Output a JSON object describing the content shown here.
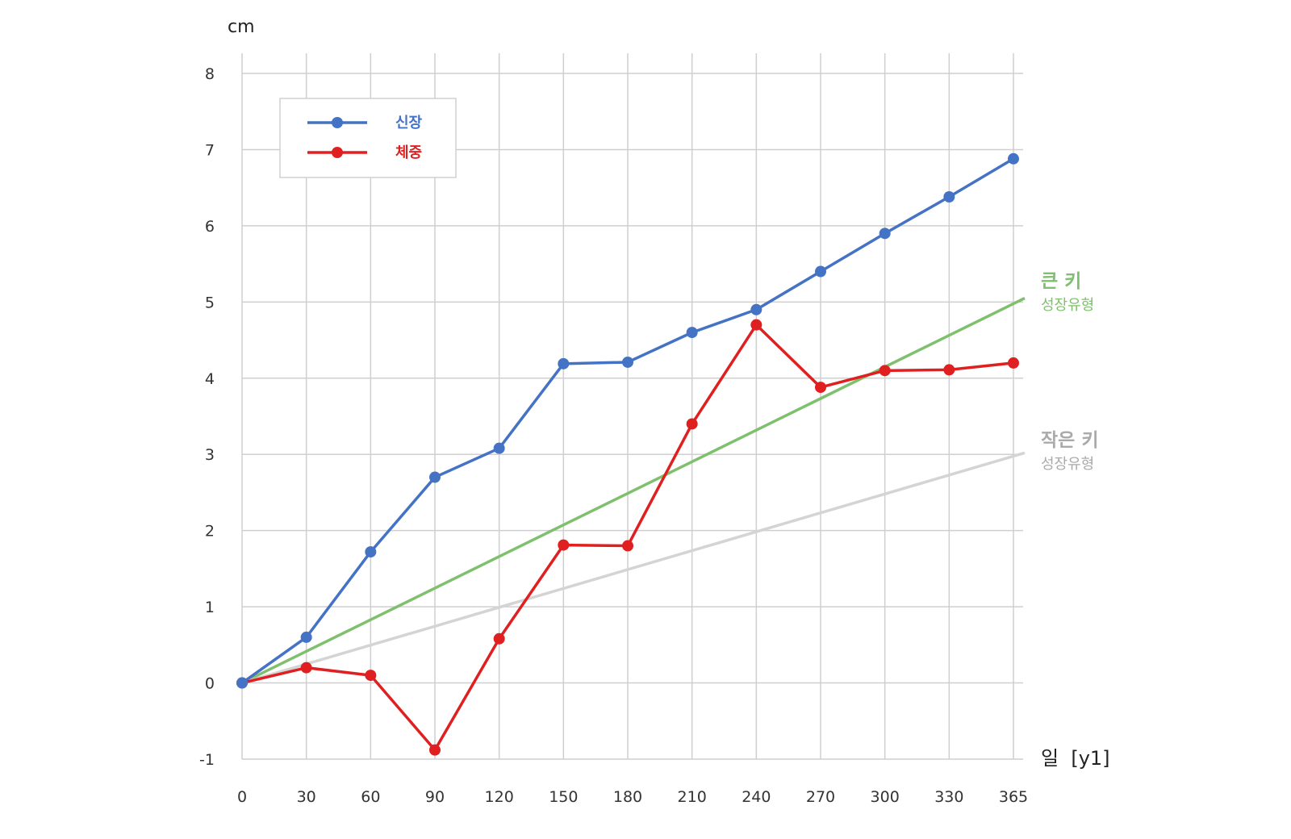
{
  "chart_data": {
    "type": "line",
    "ylabel": "cm",
    "xlabel": "일  [y1]",
    "x": [
      0,
      30,
      60,
      90,
      120,
      150,
      180,
      210,
      240,
      270,
      300,
      330,
      365
    ],
    "xticks": [
      "0",
      "30",
      "60",
      "90",
      "120",
      "150",
      "180",
      "210",
      "240",
      "270",
      "300",
      "330",
      "365"
    ],
    "yticks": [
      "-1",
      "0",
      "1",
      "2",
      "3",
      "4",
      "5",
      "6",
      "7",
      "8"
    ],
    "ylim": [
      -1,
      8
    ],
    "grid": true,
    "legend_position": "top-left",
    "series": [
      {
        "name": "신장",
        "color": "#4472c4",
        "values": [
          0,
          0.6,
          1.72,
          2.7,
          3.08,
          4.19,
          4.21,
          4.6,
          4.9,
          5.4,
          5.9,
          6.38,
          6.88
        ]
      },
      {
        "name": "체중",
        "color": "#e02020",
        "values": [
          0,
          0.2,
          0.1,
          -0.88,
          0.58,
          1.81,
          1.8,
          3.4,
          4.7,
          3.88,
          4.1,
          4.11,
          4.2
        ]
      }
    ],
    "reference_lines": [
      {
        "label": "큰 키",
        "sublabel": "성장유형",
        "color": "#7fc06e",
        "start": 0,
        "end": 5.05
      },
      {
        "label": "작은 키",
        "sublabel": "성장유형",
        "color": "#d4d4d4",
        "label_color": "#aaaaaa",
        "start": 0,
        "end": 3.02
      }
    ]
  }
}
